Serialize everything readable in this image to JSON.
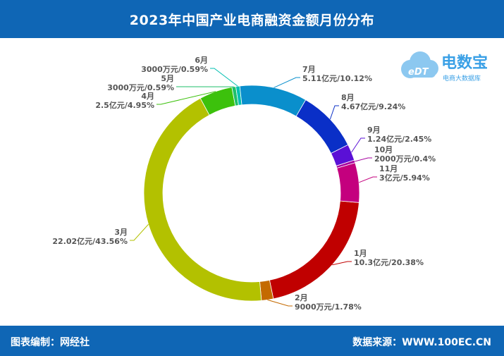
{
  "header": {
    "title": "2023年中国产业电商融资金额月份分布"
  },
  "footer": {
    "left": "图表编制：网经社",
    "right": "数据来源：WWW.100EC.CN"
  },
  "logo": {
    "brand": "电数宝",
    "sub": "电商大数据库",
    "mark": "eDT"
  },
  "chart_data": {
    "type": "pie",
    "variant": "donut",
    "title": "2023年中国产业电商融资金额月份分布",
    "series": [
      {
        "name": "1月",
        "value": 20.38,
        "amount": "10.3亿元",
        "pct": "20.38%",
        "color": "#c00000"
      },
      {
        "name": "2月",
        "value": 1.78,
        "amount": "9000万元",
        "pct": "1.78%",
        "color": "#c46a00"
      },
      {
        "name": "3月",
        "value": 43.56,
        "amount": "22.02亿元",
        "pct": "43.56%",
        "color": "#b3c100"
      },
      {
        "name": "4月",
        "value": 4.95,
        "amount": "2.5亿元",
        "pct": "4.95%",
        "color": "#3cc10c"
      },
      {
        "name": "5月",
        "value": 0.59,
        "amount": "3000万元",
        "pct": "0.59%",
        "color": "#1fbf6a"
      },
      {
        "name": "6月",
        "value": 0.59,
        "amount": "3000万元",
        "pct": "0.59%",
        "color": "#00bfb0"
      },
      {
        "name": "7月",
        "value": 10.12,
        "amount": "5.11亿元",
        "pct": "10.12%",
        "color": "#0a8fcc"
      },
      {
        "name": "8月",
        "value": 9.24,
        "amount": "4.67亿元",
        "pct": "9.24%",
        "color": "#0a2fc7"
      },
      {
        "name": "9月",
        "value": 2.45,
        "amount": "1.24亿元",
        "pct": "2.45%",
        "color": "#5a10d6"
      },
      {
        "name": "10月",
        "value": 0.4,
        "amount": "2000万元",
        "pct": "0.4%",
        "color": "#a6009f"
      },
      {
        "name": "11月",
        "value": 5.94,
        "amount": "3亿元",
        "pct": "5.94%",
        "color": "#c4007e"
      }
    ]
  }
}
